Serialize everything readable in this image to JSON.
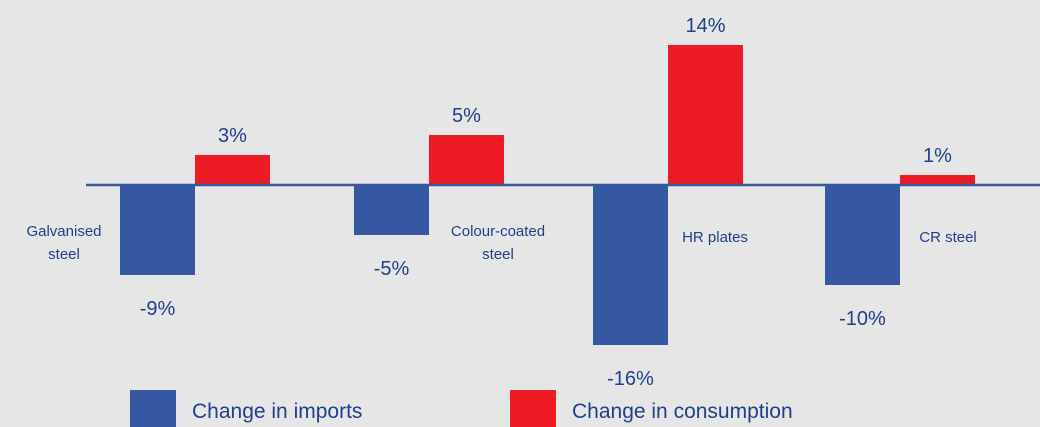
{
  "chart_data": {
    "type": "bar",
    "categories": [
      "Galvanised steel",
      "Colour-coated steel",
      "HR plates",
      "CR steel"
    ],
    "category_label_lines": [
      [
        "Galvanised",
        "steel"
      ],
      [
        "Colour-coated",
        "steel"
      ],
      [
        "HR plates"
      ],
      [
        "CR steel"
      ]
    ],
    "series": [
      {
        "name": "Change in imports",
        "values": [
          -9,
          -5,
          -16,
          -10
        ],
        "value_labels": [
          "-9%",
          "-5%",
          "-16%",
          "-10%"
        ],
        "color": "#3558a0"
      },
      {
        "name": "Change in consumption",
        "values": [
          3,
          5,
          14,
          1
        ],
        "value_labels": [
          "3%",
          "5%",
          "14%",
          "1%"
        ],
        "color": "#ed1c24"
      }
    ],
    "title": "",
    "xlabel": "",
    "ylabel": "",
    "ylim": [
      -16,
      14
    ],
    "grid": false,
    "legend": "bottom",
    "colors": {
      "background": "#e6e6e6",
      "axis": "#3558a0",
      "label_text": "#1f3f8f"
    }
  }
}
